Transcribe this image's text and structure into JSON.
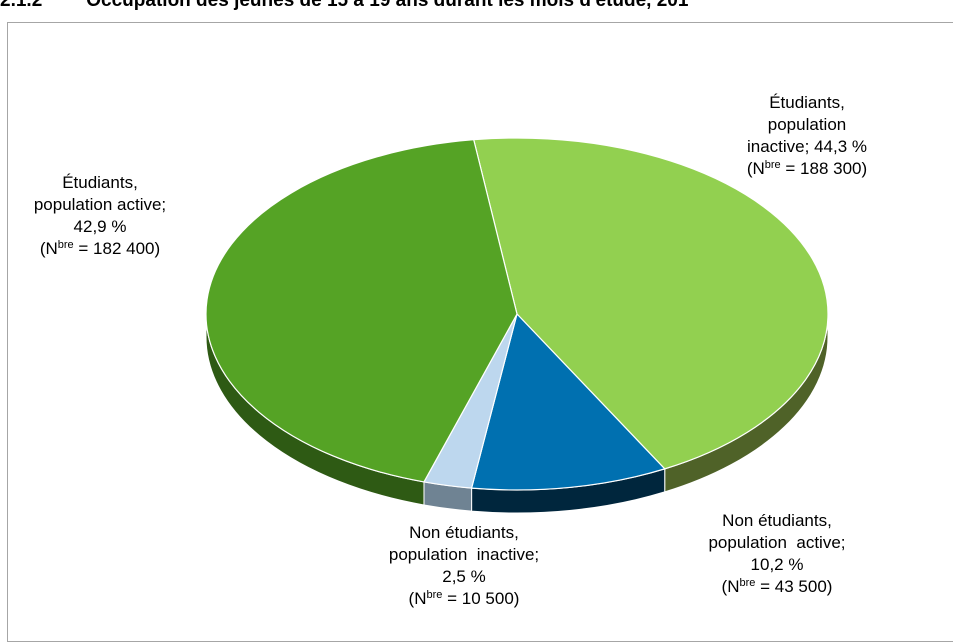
{
  "header": {
    "number": "2.1.2",
    "title": "Occupation des jeunes de 15 à 19 ans durant les mois d'étude, 201"
  },
  "chart_data": {
    "type": "pie",
    "title": "Occupation des jeunes de 15 à 19 ans durant les mois d'étude, 201",
    "slices": [
      {
        "name": "Étudiants, population inactive",
        "value": 44.3,
        "count_label": "(N",
        "count_sup": "bre",
        "count_value": " = 188 300)",
        "label_lines": [
          "Étudiants,",
          "population",
          "inactive; 44,3 %"
        ],
        "color": "#92d050",
        "side_color": "#4f6228"
      },
      {
        "name": "Non étudiants, population active",
        "value": 10.2,
        "count_label": "(N",
        "count_sup": "bre",
        "count_value": " = 43 500)",
        "label_lines": [
          "Non étudiants,",
          "population  active;",
          "10,2 %"
        ],
        "color": "#0070b0",
        "side_color": "#00263d"
      },
      {
        "name": "Non étudiants, population inactive",
        "value": 2.5,
        "count_label": "(N",
        "count_sup": "bre",
        "count_value": " = 10 500)",
        "label_lines": [
          "Non étudiants,",
          "population  inactive;",
          "2,5 %"
        ],
        "color": "#bdd7ee",
        "side_color": "#6f8393"
      },
      {
        "name": "Étudiants, population active",
        "value": 42.9,
        "count_label": "(N",
        "count_sup": "bre",
        "count_value": " = 182 400)",
        "label_lines": [
          "Étudiants,",
          "population active;",
          "42,9 %"
        ],
        "color": "#55a325",
        "side_color": "#2e5a14"
      }
    ],
    "legend": "none"
  }
}
